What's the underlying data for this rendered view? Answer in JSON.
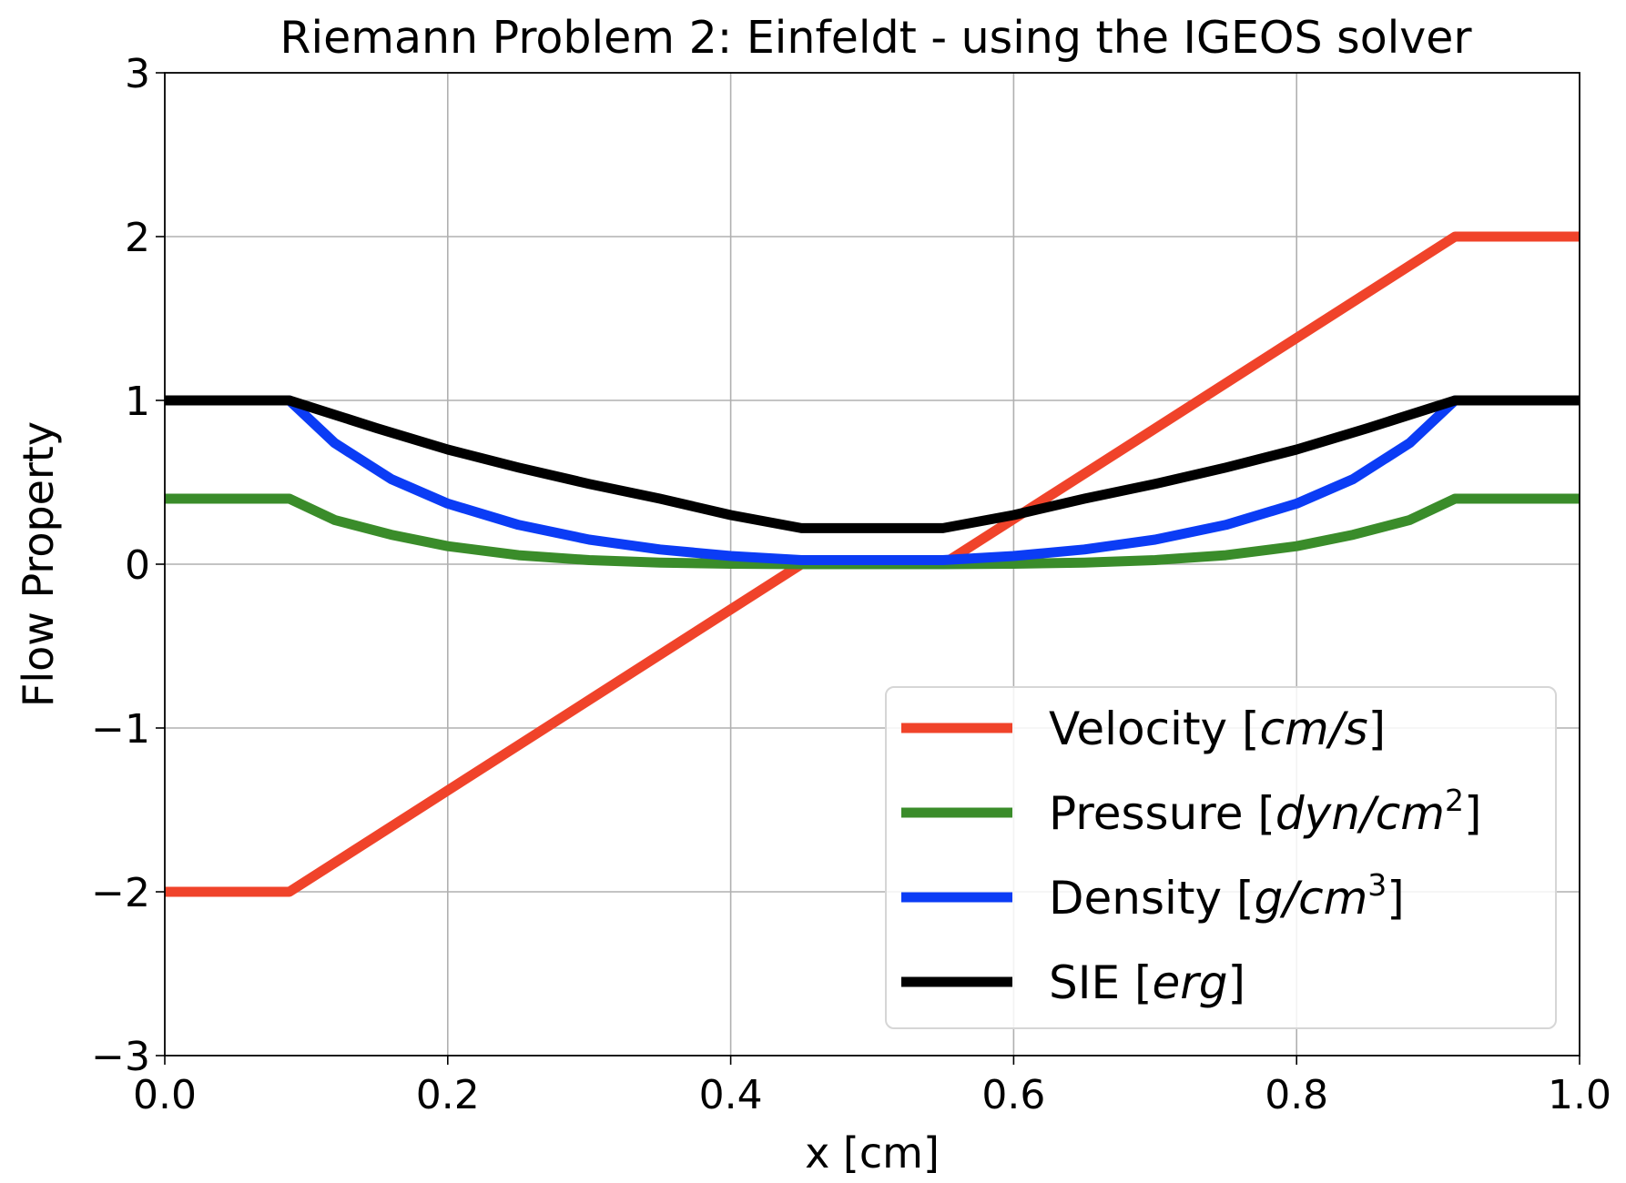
{
  "chart_data": {
    "type": "line",
    "title": "Riemann Problem 2: Einfeldt - using the IGEOS solver",
    "xlabel": "x [cm]",
    "ylabel": "Flow Property",
    "xlim": [
      0.0,
      1.0
    ],
    "ylim": [
      -3,
      3
    ],
    "x_ticks": [
      0.0,
      0.2,
      0.4,
      0.6,
      0.8,
      1.0
    ],
    "x_tick_labels": [
      "0.0",
      "0.2",
      "0.4",
      "0.6",
      "0.8",
      "1.0"
    ],
    "y_ticks": [
      -3,
      -2,
      -1,
      0,
      1,
      2,
      3
    ],
    "y_tick_labels": [
      "−3",
      "−2",
      "−1",
      "0",
      "1",
      "2",
      "3"
    ],
    "grid": true,
    "legend_position": "lower-right",
    "series": [
      {
        "name": "Velocity",
        "legend_main": "Velocity [",
        "legend_unit": "cm/s",
        "legend_tail": "]",
        "color": "#f0432a",
        "x": [
          0.0,
          0.088,
          0.45,
          0.55,
          0.912,
          1.0
        ],
        "y": [
          -2.0,
          -2.0,
          0.0,
          0.0,
          2.0,
          2.0
        ]
      },
      {
        "name": "Pressure",
        "legend_main": "Pressure [",
        "legend_unit": "dyn/cm",
        "legend_sup": "2",
        "legend_tail": "]",
        "color": "#3a8c2a",
        "x": [
          0.0,
          0.088,
          0.12,
          0.16,
          0.2,
          0.25,
          0.3,
          0.35,
          0.4,
          0.45,
          0.55,
          0.6,
          0.65,
          0.7,
          0.75,
          0.8,
          0.84,
          0.88,
          0.912,
          1.0
        ],
        "y": [
          0.4,
          0.4,
          0.27,
          0.18,
          0.11,
          0.055,
          0.025,
          0.01,
          0.003,
          0.0,
          0.0,
          0.003,
          0.01,
          0.025,
          0.055,
          0.11,
          0.18,
          0.27,
          0.4,
          0.4
        ]
      },
      {
        "name": "Density",
        "legend_main": "Density [",
        "legend_unit": "g/cm",
        "legend_sup": "3",
        "legend_tail": "]",
        "color": "#0b3cf5",
        "x": [
          0.0,
          0.088,
          0.12,
          0.16,
          0.2,
          0.25,
          0.3,
          0.35,
          0.4,
          0.45,
          0.55,
          0.6,
          0.65,
          0.7,
          0.75,
          0.8,
          0.84,
          0.88,
          0.912,
          1.0
        ],
        "y": [
          1.0,
          1.0,
          0.74,
          0.52,
          0.37,
          0.24,
          0.15,
          0.09,
          0.05,
          0.025,
          0.025,
          0.05,
          0.09,
          0.15,
          0.24,
          0.37,
          0.52,
          0.74,
          1.0,
          1.0
        ]
      },
      {
        "name": "SIE",
        "legend_main": "SIE [",
        "legend_unit": "erg",
        "legend_tail": "]",
        "color": "#000000",
        "x": [
          0.0,
          0.088,
          0.15,
          0.2,
          0.25,
          0.3,
          0.35,
          0.4,
          0.45,
          0.55,
          0.6,
          0.65,
          0.7,
          0.75,
          0.8,
          0.85,
          0.912,
          1.0
        ],
        "y": [
          1.0,
          1.0,
          0.83,
          0.7,
          0.59,
          0.49,
          0.4,
          0.3,
          0.22,
          0.22,
          0.3,
          0.4,
          0.49,
          0.59,
          0.7,
          0.83,
          1.0,
          1.0
        ]
      }
    ]
  }
}
